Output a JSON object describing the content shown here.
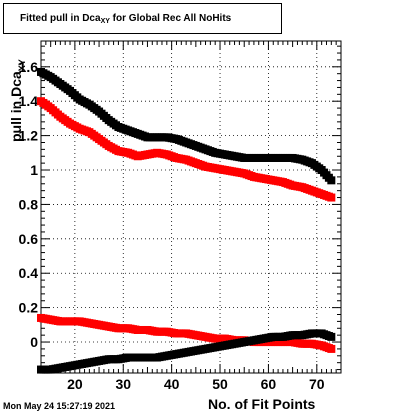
{
  "chart_data": {
    "type": "scatter",
    "title_main": "Fitted pull in Dca",
    "title_sub": "XY",
    "title_rest": " for Global Rec All NoHits",
    "ylabel_main": "pull in Dca",
    "ylabel_sub": "XY",
    "xlabel": "No. of Fit Points",
    "xlim": [
      13,
      75
    ],
    "ylim": [
      -0.18,
      1.75
    ],
    "xticks": [
      20,
      30,
      40,
      50,
      60,
      70
    ],
    "xtick_labels": [
      "20",
      "30",
      "40",
      "50",
      "60",
      "70"
    ],
    "yticks": [
      0,
      0.2,
      0.4,
      0.6,
      0.8,
      1,
      1.2,
      1.4,
      1.6
    ],
    "ytick_labels": [
      "0",
      "0.2",
      "0.4",
      "0.6",
      "0.8",
      "1",
      "1.2",
      "1.4",
      "1.6"
    ],
    "grid": true,
    "series": [
      {
        "color": "#000000",
        "points": [
          [
            13,
            1.57
          ],
          [
            15,
            1.54
          ],
          [
            17,
            1.5
          ],
          [
            19,
            1.46
          ],
          [
            21,
            1.41
          ],
          [
            23,
            1.38
          ],
          [
            25,
            1.34
          ],
          [
            27,
            1.29
          ],
          [
            29,
            1.25
          ],
          [
            31,
            1.23
          ],
          [
            33,
            1.21
          ],
          [
            35,
            1.19
          ],
          [
            37,
            1.19
          ],
          [
            39,
            1.19
          ],
          [
            41,
            1.18
          ],
          [
            43,
            1.16
          ],
          [
            45,
            1.14
          ],
          [
            47,
            1.12
          ],
          [
            49,
            1.1
          ],
          [
            51,
            1.09
          ],
          [
            53,
            1.08
          ],
          [
            55,
            1.07
          ],
          [
            57,
            1.07
          ],
          [
            59,
            1.07
          ],
          [
            61,
            1.07
          ],
          [
            63,
            1.07
          ],
          [
            65,
            1.07
          ],
          [
            67,
            1.06
          ],
          [
            69,
            1.04
          ],
          [
            71,
            1.0
          ],
          [
            73,
            0.94
          ]
        ]
      },
      {
        "color": "#ff0000",
        "points": [
          [
            13,
            1.4
          ],
          [
            15,
            1.36
          ],
          [
            17,
            1.31
          ],
          [
            19,
            1.27
          ],
          [
            21,
            1.24
          ],
          [
            23,
            1.22
          ],
          [
            25,
            1.18
          ],
          [
            27,
            1.14
          ],
          [
            29,
            1.11
          ],
          [
            31,
            1.1
          ],
          [
            33,
            1.08
          ],
          [
            35,
            1.09
          ],
          [
            37,
            1.1
          ],
          [
            39,
            1.09
          ],
          [
            41,
            1.07
          ],
          [
            43,
            1.06
          ],
          [
            45,
            1.04
          ],
          [
            47,
            1.02
          ],
          [
            49,
            1.01
          ],
          [
            51,
            1.0
          ],
          [
            53,
            0.99
          ],
          [
            55,
            0.98
          ],
          [
            57,
            0.96
          ],
          [
            59,
            0.95
          ],
          [
            61,
            0.94
          ],
          [
            63,
            0.93
          ],
          [
            65,
            0.91
          ],
          [
            67,
            0.9
          ],
          [
            69,
            0.88
          ],
          [
            71,
            0.86
          ],
          [
            73,
            0.84
          ]
        ]
      },
      {
        "color": "#ff0000",
        "points": [
          [
            13,
            0.14
          ],
          [
            15,
            0.13
          ],
          [
            17,
            0.12
          ],
          [
            19,
            0.12
          ],
          [
            21,
            0.12
          ],
          [
            23,
            0.11
          ],
          [
            25,
            0.1
          ],
          [
            27,
            0.09
          ],
          [
            29,
            0.08
          ],
          [
            31,
            0.08
          ],
          [
            33,
            0.07
          ],
          [
            35,
            0.07
          ],
          [
            37,
            0.06
          ],
          [
            39,
            0.06
          ],
          [
            41,
            0.05
          ],
          [
            43,
            0.05
          ],
          [
            45,
            0.04
          ],
          [
            47,
            0.03
          ],
          [
            49,
            0.02
          ],
          [
            51,
            0.02
          ],
          [
            53,
            0.01
          ],
          [
            55,
            0.01
          ],
          [
            57,
            0.0
          ],
          [
            59,
            0.0
          ],
          [
            61,
            0.0
          ],
          [
            63,
            0.0
          ],
          [
            65,
            0.0
          ],
          [
            67,
            -0.01
          ],
          [
            69,
            -0.01
          ],
          [
            71,
            -0.02
          ],
          [
            73,
            -0.04
          ]
        ]
      },
      {
        "color": "#000000",
        "points": [
          [
            13,
            -0.16
          ],
          [
            15,
            -0.16
          ],
          [
            17,
            -0.15
          ],
          [
            19,
            -0.14
          ],
          [
            21,
            -0.13
          ],
          [
            23,
            -0.12
          ],
          [
            25,
            -0.11
          ],
          [
            27,
            -0.1
          ],
          [
            29,
            -0.1
          ],
          [
            31,
            -0.09
          ],
          [
            33,
            -0.09
          ],
          [
            35,
            -0.09
          ],
          [
            37,
            -0.09
          ],
          [
            39,
            -0.08
          ],
          [
            41,
            -0.07
          ],
          [
            43,
            -0.06
          ],
          [
            45,
            -0.05
          ],
          [
            47,
            -0.04
          ],
          [
            49,
            -0.03
          ],
          [
            51,
            -0.02
          ],
          [
            53,
            -0.01
          ],
          [
            55,
            0.0
          ],
          [
            57,
            0.01
          ],
          [
            59,
            0.02
          ],
          [
            61,
            0.03
          ],
          [
            63,
            0.03
          ],
          [
            65,
            0.04
          ],
          [
            67,
            0.04
          ],
          [
            69,
            0.05
          ],
          [
            71,
            0.05
          ],
          [
            73,
            0.03
          ]
        ]
      }
    ]
  },
  "footer": {
    "datestamp": "Mon May 24 15:27:19 2021"
  }
}
